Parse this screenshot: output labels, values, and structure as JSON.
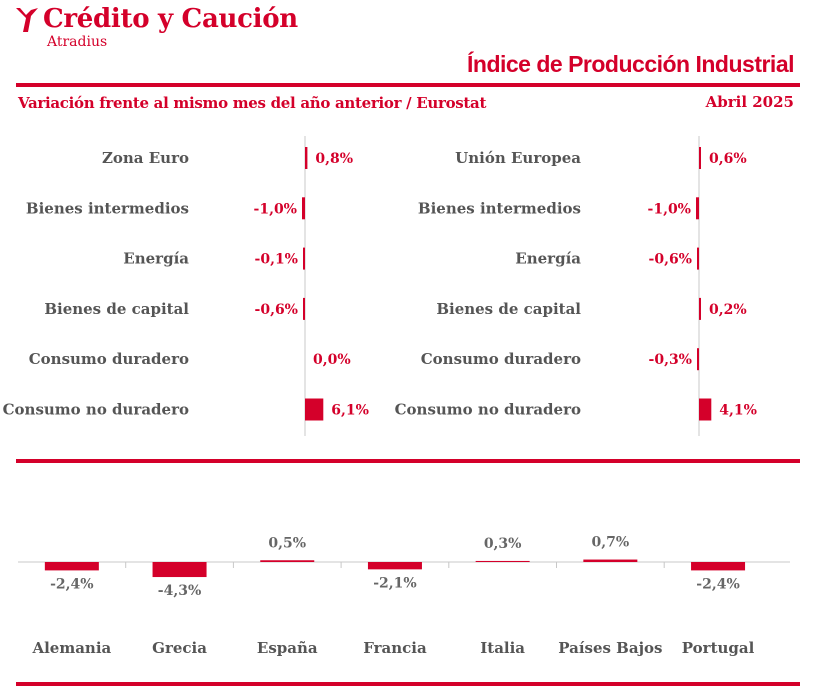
{
  "brand": {
    "name": "Crédito y Caución",
    "sub": "Atradius",
    "color": "#d4002a"
  },
  "header": {
    "title": "Índice de Producción Industrial",
    "subtitle": "Variación frente al mismo mes del año anterior / Eurostat",
    "date": "Abril 2025"
  },
  "chart_data": [
    {
      "type": "bar",
      "orientation": "horizontal",
      "categories": [
        "Zona Euro",
        "Bienes intermedios",
        "Energía",
        "Bienes de capital",
        "Consumo duradero",
        "Consumo no duradero"
      ],
      "values": [
        0.8,
        -1.0,
        -0.1,
        -0.6,
        0.0,
        6.1
      ],
      "labels": [
        "0,8%",
        "-1,0%",
        "-0,1%",
        "-0,6%",
        "0,0%",
        "6,1%"
      ],
      "color": "#d4002a"
    },
    {
      "type": "bar",
      "orientation": "horizontal",
      "categories": [
        "Unión Europea",
        "Bienes intermedios",
        "Energía",
        "Bienes de capital",
        "Consumo duradero",
        "Consumo no duradero"
      ],
      "values": [
        0.6,
        -1.0,
        -0.6,
        0.2,
        -0.3,
        4.1
      ],
      "labels": [
        "0,6%",
        "-1,0%",
        "-0,6%",
        "0,2%",
        "-0,3%",
        "4,1%"
      ],
      "color": "#d4002a"
    },
    {
      "type": "bar",
      "orientation": "vertical",
      "categories": [
        "Alemania",
        "Grecia",
        "España",
        "Francia",
        "Italia",
        "Países Bajos",
        "Portugal"
      ],
      "values": [
        -2.4,
        -4.3,
        0.5,
        -2.1,
        0.3,
        0.7,
        -2.4
      ],
      "labels": [
        "-2,4%",
        "-4,3%",
        "0,5%",
        "-2,1%",
        "0,3%",
        "0,7%",
        "-2,4%"
      ],
      "color": "#d4002a"
    }
  ]
}
